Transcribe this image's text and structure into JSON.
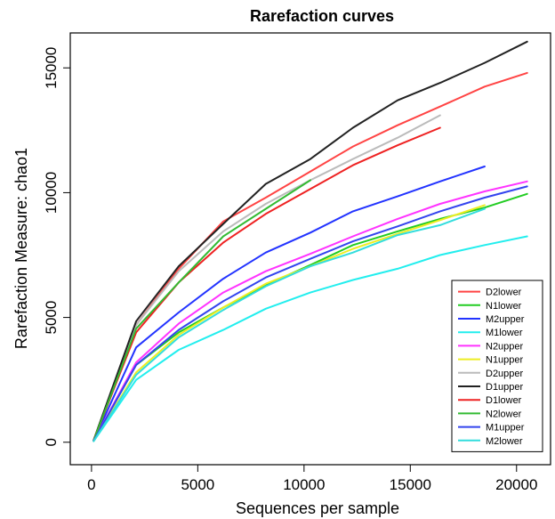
{
  "chart_data": {
    "type": "line",
    "title": "Rarefaction curves",
    "xlabel": "Sequences per sample",
    "ylabel": "Rarefaction Measure: chao1",
    "xlim": [
      -1000,
      21600
    ],
    "ylim": [
      -900,
      16400
    ],
    "xticks": [
      0,
      5000,
      10000,
      15000,
      20000
    ],
    "yticks": [
      0,
      5000,
      10000,
      15000
    ],
    "grid": false,
    "legend_position": "bottom-right",
    "series": [
      {
        "name": "D2lower",
        "color": "#FF4444",
        "x": [
          100,
          2100,
          4100,
          6200,
          8200,
          10300,
          12300,
          14400,
          16400,
          18500,
          20500
        ],
        "y": [
          80,
          4700,
          6950,
          8850,
          9800,
          10850,
          11850,
          12700,
          13450,
          14250,
          14800
        ]
      },
      {
        "name": "N1lower",
        "color": "#22CC22",
        "x": [
          100,
          2100,
          4100,
          6200,
          8200,
          10300,
          12300,
          14400,
          16400,
          18500,
          20500
        ],
        "y": [
          60,
          3100,
          4400,
          5400,
          6300,
          7100,
          7900,
          8450,
          8950,
          9400,
          9950
        ]
      },
      {
        "name": "M2upper",
        "color": "#2233FF",
        "x": [
          100,
          2100,
          4100,
          6200,
          8200,
          10300,
          12300,
          14400,
          16400,
          18500
        ],
        "y": [
          60,
          3800,
          5200,
          6550,
          7600,
          8400,
          9250,
          9850,
          10450,
          11050
        ]
      },
      {
        "name": "M1lower",
        "color": "#22EEEE",
        "x": [
          100,
          2100,
          4100,
          6200,
          8200,
          10300,
          12300,
          14400,
          16400,
          18500,
          20500
        ],
        "y": [
          40,
          2500,
          3700,
          4500,
          5350,
          6000,
          6500,
          6950,
          7500,
          7900,
          8250
        ]
      },
      {
        "name": "N2upper",
        "color": "#FF33FF",
        "x": [
          100,
          2100,
          4100,
          6200,
          8200,
          10300,
          12300,
          14400,
          16400,
          18500,
          20500
        ],
        "y": [
          60,
          3200,
          4750,
          6000,
          6850,
          7550,
          8250,
          8950,
          9550,
          10050,
          10450
        ]
      },
      {
        "name": "N1upper",
        "color": "#EEEE22",
        "x": [
          100,
          2100,
          4100,
          6200,
          8200,
          10300,
          12300,
          14400,
          16400,
          18500
        ],
        "y": [
          50,
          2800,
          4300,
          5400,
          6350,
          7050,
          7750,
          8350,
          8900,
          9500
        ]
      },
      {
        "name": "D2upper",
        "color": "#BBBBBB",
        "x": [
          100,
          2100,
          4100,
          6200,
          8200,
          10300,
          12300,
          14400,
          16400
        ],
        "y": [
          80,
          4700,
          6850,
          8450,
          9550,
          10500,
          11350,
          12200,
          13100
        ]
      },
      {
        "name": "D1upper",
        "color": "#222222",
        "x": [
          100,
          2100,
          4100,
          6200,
          8200,
          10300,
          12300,
          14400,
          16400,
          18500,
          20500
        ],
        "y": [
          80,
          4850,
          7050,
          8750,
          10350,
          11350,
          12600,
          13700,
          14400,
          15200,
          16050
        ]
      },
      {
        "name": "D1lower",
        "color": "#EE2222",
        "x": [
          100,
          2100,
          4100,
          6200,
          8200,
          10300,
          12300,
          14400,
          16400
        ],
        "y": [
          80,
          4400,
          6400,
          8000,
          9150,
          10150,
          11100,
          11900,
          12600
        ]
      },
      {
        "name": "N2lower",
        "color": "#33BB33",
        "x": [
          100,
          2100,
          4100,
          6200,
          8200,
          10300
        ],
        "y": [
          70,
          4550,
          6400,
          8250,
          9350,
          10500
        ]
      },
      {
        "name": "M1upper",
        "color": "#3344EE",
        "x": [
          100,
          2100,
          4100,
          6200,
          8200,
          10300,
          12300,
          14400,
          16400,
          18500,
          20500
        ],
        "y": [
          60,
          3100,
          4500,
          5650,
          6600,
          7350,
          8050,
          8650,
          9250,
          9800,
          10250
        ]
      },
      {
        "name": "M2lower",
        "color": "#33DDDD",
        "x": [
          100,
          2100,
          4100,
          6200,
          8200,
          10300,
          12300,
          14400,
          16400,
          18500
        ],
        "y": [
          40,
          2700,
          4200,
          5300,
          6250,
          7050,
          7600,
          8300,
          8700,
          9350
        ]
      }
    ]
  }
}
